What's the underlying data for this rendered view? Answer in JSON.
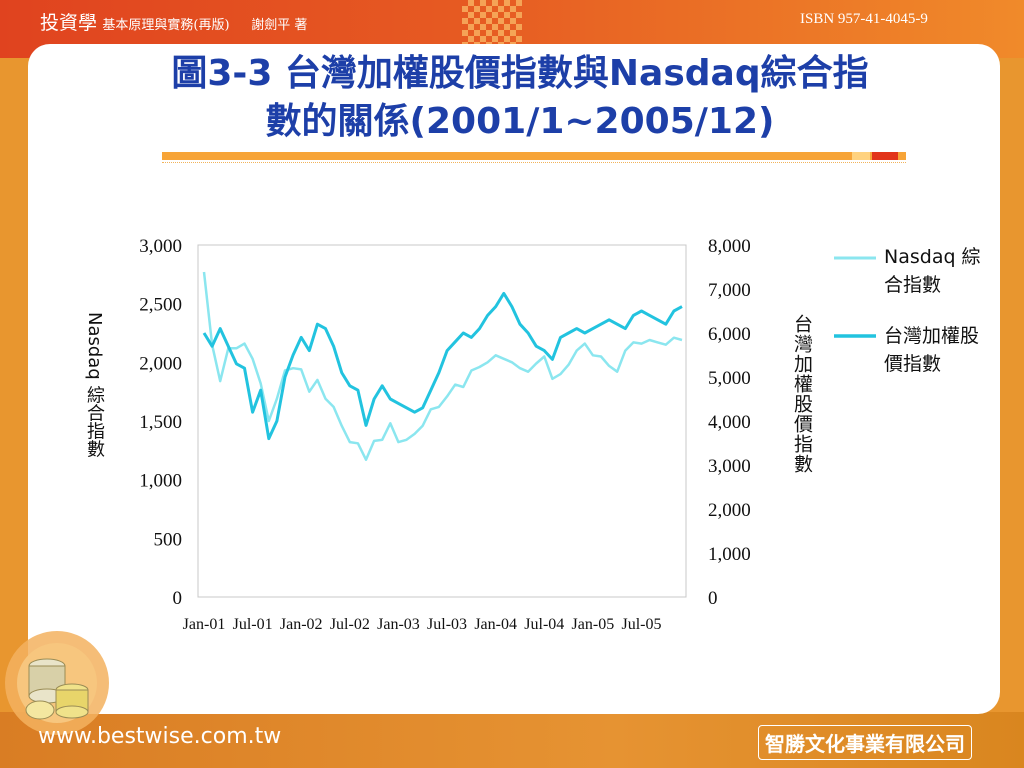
{
  "header": {
    "book_title": "投資學",
    "book_subtitle": "基本原理與實務(再版)",
    "author": "謝劍平 著",
    "isbn": "ISBN 957-41-4045-9"
  },
  "slide": {
    "title_line1": "圖3-3 台灣加權股價指數與Nasdaq綜合指",
    "title_line2": "數的關係(2001/1~2005/12)"
  },
  "footer": {
    "url": "www.bestwise.com.tw",
    "company": "智勝文化事業有限公司"
  },
  "colors": {
    "nasdaq": "#8be6ef",
    "taiex": "#22c3df",
    "title": "#1d3fa8",
    "accent": "#f7a437"
  },
  "chart_data": {
    "type": "line",
    "title": "圖3-3 台灣加權股價指數與Nasdaq綜合指數的關係(2001/1~2005/12)",
    "xlabel": "",
    "ylabel_left": "Nasdaq 綜合指數",
    "ylabel_right": "台灣加權股價指數",
    "x_ticks": [
      "Jan-01",
      "Jul-01",
      "Jan-02",
      "Jul-02",
      "Jan-03",
      "Jul-03",
      "Jan-04",
      "Jul-04",
      "Jan-05",
      "Jul-05"
    ],
    "ylim_left": [
      0,
      3000
    ],
    "yticks_left": [
      "0",
      "500",
      "1,000",
      "1,500",
      "2,000",
      "2,500",
      "3,000"
    ],
    "ylim_right": [
      0,
      8000
    ],
    "yticks_right": [
      "0",
      "1,000",
      "2,000",
      "3,000",
      "4,000",
      "5,000",
      "6,000",
      "7,000",
      "8,000"
    ],
    "legend_position": "right",
    "series": [
      {
        "name": "Nasdaq 綜合指數",
        "axis": "left",
        "values": [
          2770,
          2150,
          1840,
          2120,
          2120,
          2160,
          2030,
          1820,
          1500,
          1690,
          1930,
          1950,
          1940,
          1750,
          1850,
          1690,
          1620,
          1460,
          1320,
          1310,
          1170,
          1330,
          1340,
          1480,
          1320,
          1340,
          1390,
          1460,
          1600,
          1620,
          1710,
          1810,
          1790,
          1930,
          1960,
          2000,
          2060,
          2030,
          2000,
          1950,
          1920,
          1990,
          2050,
          1860,
          1900,
          1980,
          2100,
          2160,
          2060,
          2050,
          1970,
          1920,
          2100,
          2170,
          2160,
          2190,
          2170,
          2150,
          2210,
          2190
        ]
      },
      {
        "name": "台灣加權股價指數",
        "axis": "right",
        "values": [
          6000,
          5700,
          6100,
          5700,
          5300,
          5200,
          4200,
          4700,
          3600,
          4000,
          5000,
          5500,
          5900,
          5600,
          6200,
          6100,
          5700,
          5100,
          4800,
          4700,
          3900,
          4500,
          4800,
          4500,
          4400,
          4300,
          4200,
          4300,
          4700,
          5100,
          5600,
          5800,
          6000,
          5900,
          6100,
          6400,
          6600,
          6900,
          6600,
          6200,
          6000,
          5700,
          5600,
          5400,
          5900,
          6000,
          6100,
          6000,
          6100,
          6200,
          6300,
          6200,
          6100,
          6400,
          6500,
          6400,
          6300,
          6200,
          6500,
          6600
        ]
      }
    ]
  }
}
